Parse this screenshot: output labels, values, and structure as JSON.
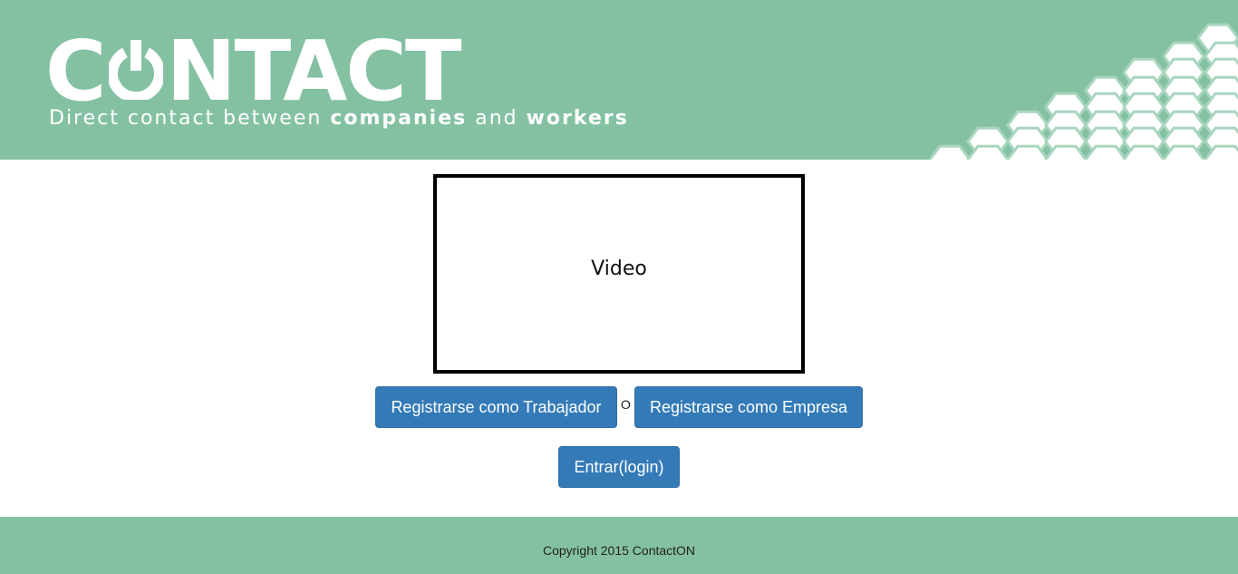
{
  "header": {
    "logo_text_before": "C",
    "logo_text_after": "NTACT",
    "tagline_light_1": "Direct contact between ",
    "tagline_bold_1": "companies",
    "tagline_light_2": " and ",
    "tagline_bold_2": "workers",
    "colors": {
      "background": "#84c1a3",
      "hex_fill": "#ffffff"
    }
  },
  "main": {
    "video_label": "Video",
    "register_worker_label": "Registrarse como Trabajador",
    "separator": "O",
    "register_company_label": "Registrarse como Empresa",
    "login_label": "Entrar(login)",
    "colors": {
      "button": "#337ab7"
    }
  },
  "footer": {
    "copyright": "Copyright 2015 ContactON"
  }
}
